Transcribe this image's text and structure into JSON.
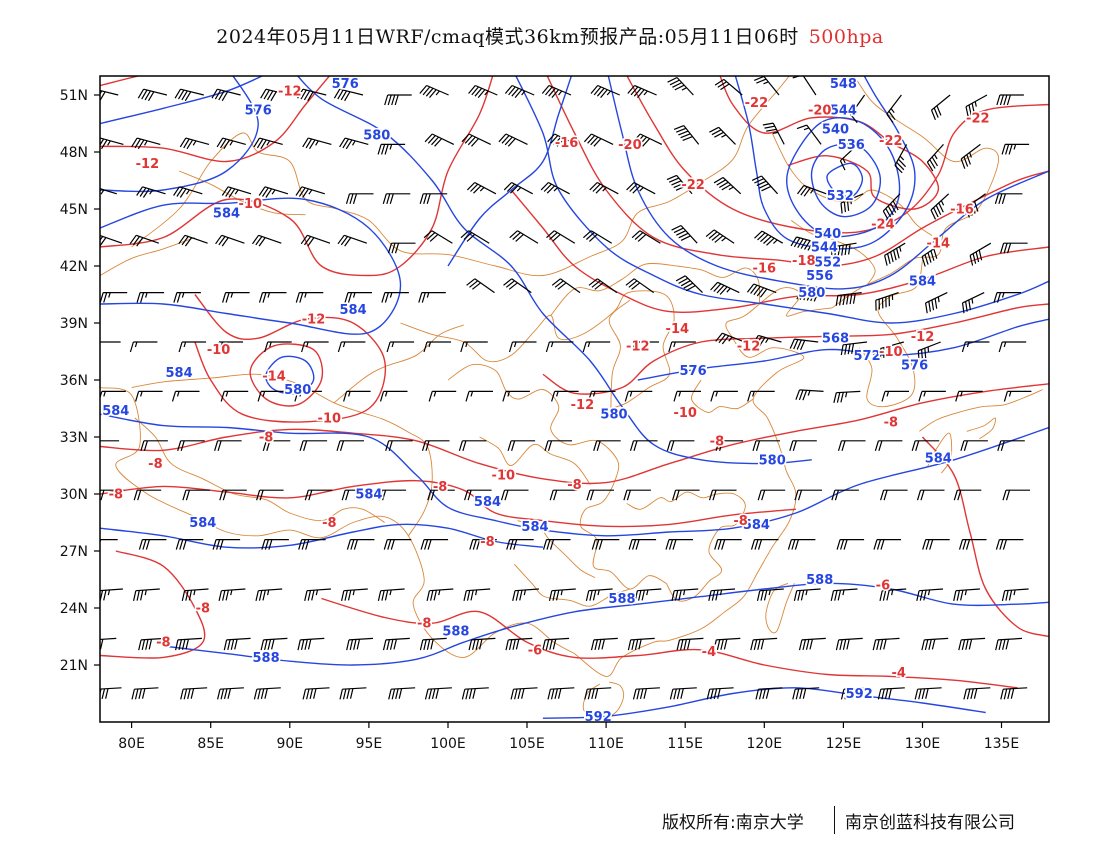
{
  "title": {
    "main": "2024年05月11日WRF/cmaq模式36km预报产品:05月11日06时",
    "level": "500hpa"
  },
  "colors": {
    "height_contour": "#2646e0",
    "temp_contour": "#e03535",
    "boundary": "#d9883a",
    "wind_barb": "#000000",
    "frame": "#000000"
  },
  "axes": {
    "lat_ticks": [
      "51N",
      "48N",
      "45N",
      "42N",
      "39N",
      "36N",
      "33N",
      "30N",
      "27N",
      "24N",
      "21N"
    ],
    "lat_values": [
      51,
      48,
      45,
      42,
      39,
      36,
      33,
      30,
      27,
      24,
      21
    ],
    "lon_ticks": [
      "80E",
      "85E",
      "90E",
      "95E",
      "100E",
      "105E",
      "110E",
      "115E",
      "120E",
      "125E",
      "130E",
      "135E"
    ],
    "lon_values": [
      80,
      85,
      90,
      95,
      100,
      105,
      110,
      115,
      120,
      125,
      130,
      135
    ],
    "lon_range": [
      78,
      138
    ],
    "lat_range": [
      18,
      52
    ]
  },
  "height_labels": [
    {
      "text": "576",
      "lon": 88.0,
      "lat": 50.2
    },
    {
      "text": "576",
      "lon": 93.5,
      "lat": 51.6
    },
    {
      "text": "580",
      "lon": 95.5,
      "lat": 48.9
    },
    {
      "text": "584",
      "lon": 86.0,
      "lat": 44.8
    },
    {
      "text": "584",
      "lon": 94.0,
      "lat": 39.7
    },
    {
      "text": "584",
      "lon": 83.0,
      "lat": 36.4
    },
    {
      "text": "580",
      "lon": 90.5,
      "lat": 35.5
    },
    {
      "text": "584",
      "lon": 79.0,
      "lat": 34.4
    },
    {
      "text": "584",
      "lon": 95.0,
      "lat": 30.0
    },
    {
      "text": "584",
      "lon": 84.5,
      "lat": 28.5
    },
    {
      "text": "584",
      "lon": 102.5,
      "lat": 29.6
    },
    {
      "text": "584",
      "lon": 105.5,
      "lat": 28.3
    },
    {
      "text": "588",
      "lon": 88.5,
      "lat": 21.4
    },
    {
      "text": "588",
      "lon": 100.5,
      "lat": 22.8
    },
    {
      "text": "588",
      "lon": 111.0,
      "lat": 24.5
    },
    {
      "text": "588",
      "lon": 123.5,
      "lat": 25.5
    },
    {
      "text": "592",
      "lon": 109.5,
      "lat": 18.3
    },
    {
      "text": "592",
      "lon": 126.0,
      "lat": 19.5
    },
    {
      "text": "580",
      "lon": 110.5,
      "lat": 34.2
    },
    {
      "text": "576",
      "lon": 115.5,
      "lat": 36.5
    },
    {
      "text": "580",
      "lon": 120.5,
      "lat": 31.8
    },
    {
      "text": "584",
      "lon": 119.5,
      "lat": 28.4
    },
    {
      "text": "584",
      "lon": 131.0,
      "lat": 31.9
    },
    {
      "text": "584",
      "lon": 130.0,
      "lat": 41.2
    },
    {
      "text": "580",
      "lon": 123.0,
      "lat": 40.6
    },
    {
      "text": "556",
      "lon": 123.5,
      "lat": 41.5
    },
    {
      "text": "552",
      "lon": 124.0,
      "lat": 42.2
    },
    {
      "text": "544",
      "lon": 123.8,
      "lat": 43.0
    },
    {
      "text": "540",
      "lon": 124.0,
      "lat": 43.7
    },
    {
      "text": "532",
      "lon": 124.8,
      "lat": 45.7
    },
    {
      "text": "536",
      "lon": 125.5,
      "lat": 48.4
    },
    {
      "text": "540",
      "lon": 124.5,
      "lat": 49.2
    },
    {
      "text": "544",
      "lon": 125.0,
      "lat": 50.2
    },
    {
      "text": "548",
      "lon": 125.0,
      "lat": 51.6
    },
    {
      "text": "568",
      "lon": 124.5,
      "lat": 38.2
    },
    {
      "text": "572",
      "lon": 126.5,
      "lat": 37.3
    },
    {
      "text": "576",
      "lon": 129.5,
      "lat": 36.8
    }
  ],
  "temp_labels": [
    {
      "text": "-12",
      "lon": 90.0,
      "lat": 51.2
    },
    {
      "text": "-12",
      "lon": 81.0,
      "lat": 47.4
    },
    {
      "text": "-10",
      "lon": 87.5,
      "lat": 45.3
    },
    {
      "text": "-12",
      "lon": 91.5,
      "lat": 39.2
    },
    {
      "text": "-10",
      "lon": 85.5,
      "lat": 37.6
    },
    {
      "text": "-14",
      "lon": 89.0,
      "lat": 36.2
    },
    {
      "text": "-10",
      "lon": 92.5,
      "lat": 34.0
    },
    {
      "text": "-8",
      "lon": 88.5,
      "lat": 33.0
    },
    {
      "text": "-8",
      "lon": 81.5,
      "lat": 31.6
    },
    {
      "text": "-8",
      "lon": 79.0,
      "lat": 30.0
    },
    {
      "text": "-8",
      "lon": 92.5,
      "lat": 28.5
    },
    {
      "text": "-8",
      "lon": 99.5,
      "lat": 30.4
    },
    {
      "text": "-10",
      "lon": 103.5,
      "lat": 31.0
    },
    {
      "text": "-8",
      "lon": 102.5,
      "lat": 27.5
    },
    {
      "text": "-8",
      "lon": 108.0,
      "lat": 30.5
    },
    {
      "text": "-12",
      "lon": 108.5,
      "lat": 34.7
    },
    {
      "text": "-12",
      "lon": 112.0,
      "lat": 37.8
    },
    {
      "text": "-14",
      "lon": 114.5,
      "lat": 38.7
    },
    {
      "text": "-12",
      "lon": 119.0,
      "lat": 37.8
    },
    {
      "text": "-10",
      "lon": 115.0,
      "lat": 34.3
    },
    {
      "text": "-8",
      "lon": 117.0,
      "lat": 32.8
    },
    {
      "text": "-8",
      "lon": 118.5,
      "lat": 28.6
    },
    {
      "text": "-8",
      "lon": 84.5,
      "lat": 24.0
    },
    {
      "text": "-8",
      "lon": 82.0,
      "lat": 22.2
    },
    {
      "text": "-8",
      "lon": 98.5,
      "lat": 23.2
    },
    {
      "text": "-6",
      "lon": 105.5,
      "lat": 21.8
    },
    {
      "text": "-4",
      "lon": 116.5,
      "lat": 21.7
    },
    {
      "text": "-4",
      "lon": 128.5,
      "lat": 20.6
    },
    {
      "text": "-6",
      "lon": 127.5,
      "lat": 25.2
    },
    {
      "text": "-8",
      "lon": 128.0,
      "lat": 33.8
    },
    {
      "text": "-10",
      "lon": 128.0,
      "lat": 37.5
    },
    {
      "text": "-12",
      "lon": 130.0,
      "lat": 38.3
    },
    {
      "text": "-14",
      "lon": 131.0,
      "lat": 43.2
    },
    {
      "text": "-16",
      "lon": 132.5,
      "lat": 45.0
    },
    {
      "text": "-16",
      "lon": 120.0,
      "lat": 41.9
    },
    {
      "text": "-18",
      "lon": 122.5,
      "lat": 42.3
    },
    {
      "text": "-24",
      "lon": 127.5,
      "lat": 44.2
    },
    {
      "text": "-20",
      "lon": 123.5,
      "lat": 50.2
    },
    {
      "text": "-22",
      "lon": 128.0,
      "lat": 48.6
    },
    {
      "text": "-22",
      "lon": 133.5,
      "lat": 49.8
    },
    {
      "text": "-22",
      "lon": 119.5,
      "lat": 50.6
    },
    {
      "text": "-22",
      "lon": 115.5,
      "lat": 46.3
    },
    {
      "text": "-20",
      "lon": 111.5,
      "lat": 48.4
    },
    {
      "text": "-16",
      "lon": 107.5,
      "lat": 48.5
    }
  ],
  "footer": {
    "left": "版权所有:南京大学",
    "right": "南京创蓝科技有限公司"
  }
}
